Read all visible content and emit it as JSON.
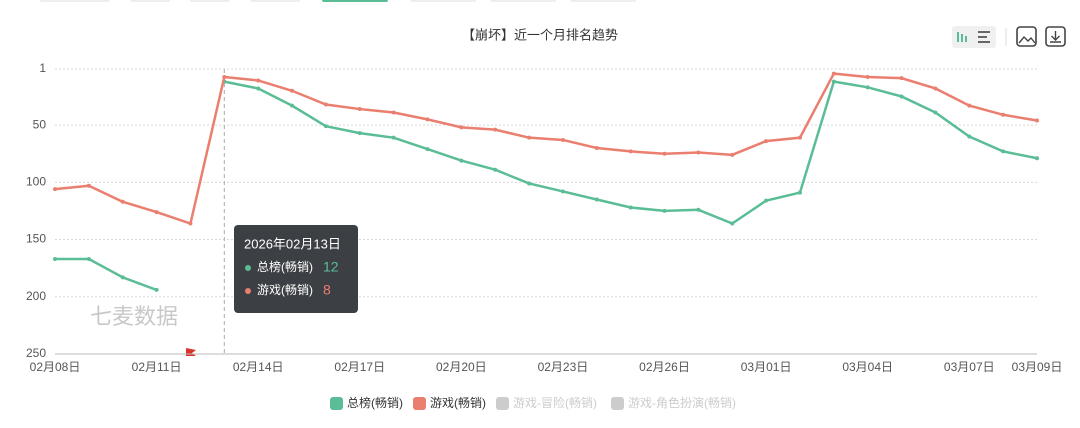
{
  "chart_data": {
    "type": "line",
    "title": "【崩坏】近一个月排名趋势",
    "watermark": "七麦数据",
    "categories": [
      "02月08日",
      null,
      null,
      "02月11日",
      null,
      null,
      "02月14日",
      null,
      null,
      "02月17日",
      null,
      null,
      "02月20日",
      null,
      null,
      "02月23日",
      null,
      null,
      "02月26日",
      null,
      null,
      "03月01日",
      null,
      null,
      "03月04日",
      null,
      null,
      "03月07日",
      null,
      "03月09日"
    ],
    "series": [
      {
        "name": "总榜(畅销)",
        "color": "#5bbd96",
        "values": [
          167,
          167,
          183,
          194,
          null,
          12,
          18,
          33,
          51,
          57,
          61,
          71,
          81,
          89,
          101,
          108,
          115,
          122,
          125,
          124,
          136,
          116,
          109,
          12,
          17,
          25,
          39,
          60,
          73,
          79
        ]
      },
      {
        "name": "游戏(畅销)",
        "color": "#ea7e6f",
        "values": [
          106,
          103,
          117,
          126,
          136,
          8,
          11,
          20,
          32,
          36,
          39,
          45,
          52,
          54,
          61,
          63,
          70,
          73,
          75,
          74,
          76,
          64,
          61,
          5,
          8,
          9,
          18,
          33,
          41,
          46
        ]
      }
    ],
    "hidden_series": [
      "游戏-冒险(畅销)",
      "游戏-角色扮演(畅销)"
    ],
    "ylim": [
      1,
      250
    ],
    "y_inverted": true,
    "yticks": [
      1,
      50,
      100,
      150,
      200,
      250
    ],
    "grid": true,
    "tooltip": {
      "title": "2026年02月13日",
      "index": 5
    }
  }
}
